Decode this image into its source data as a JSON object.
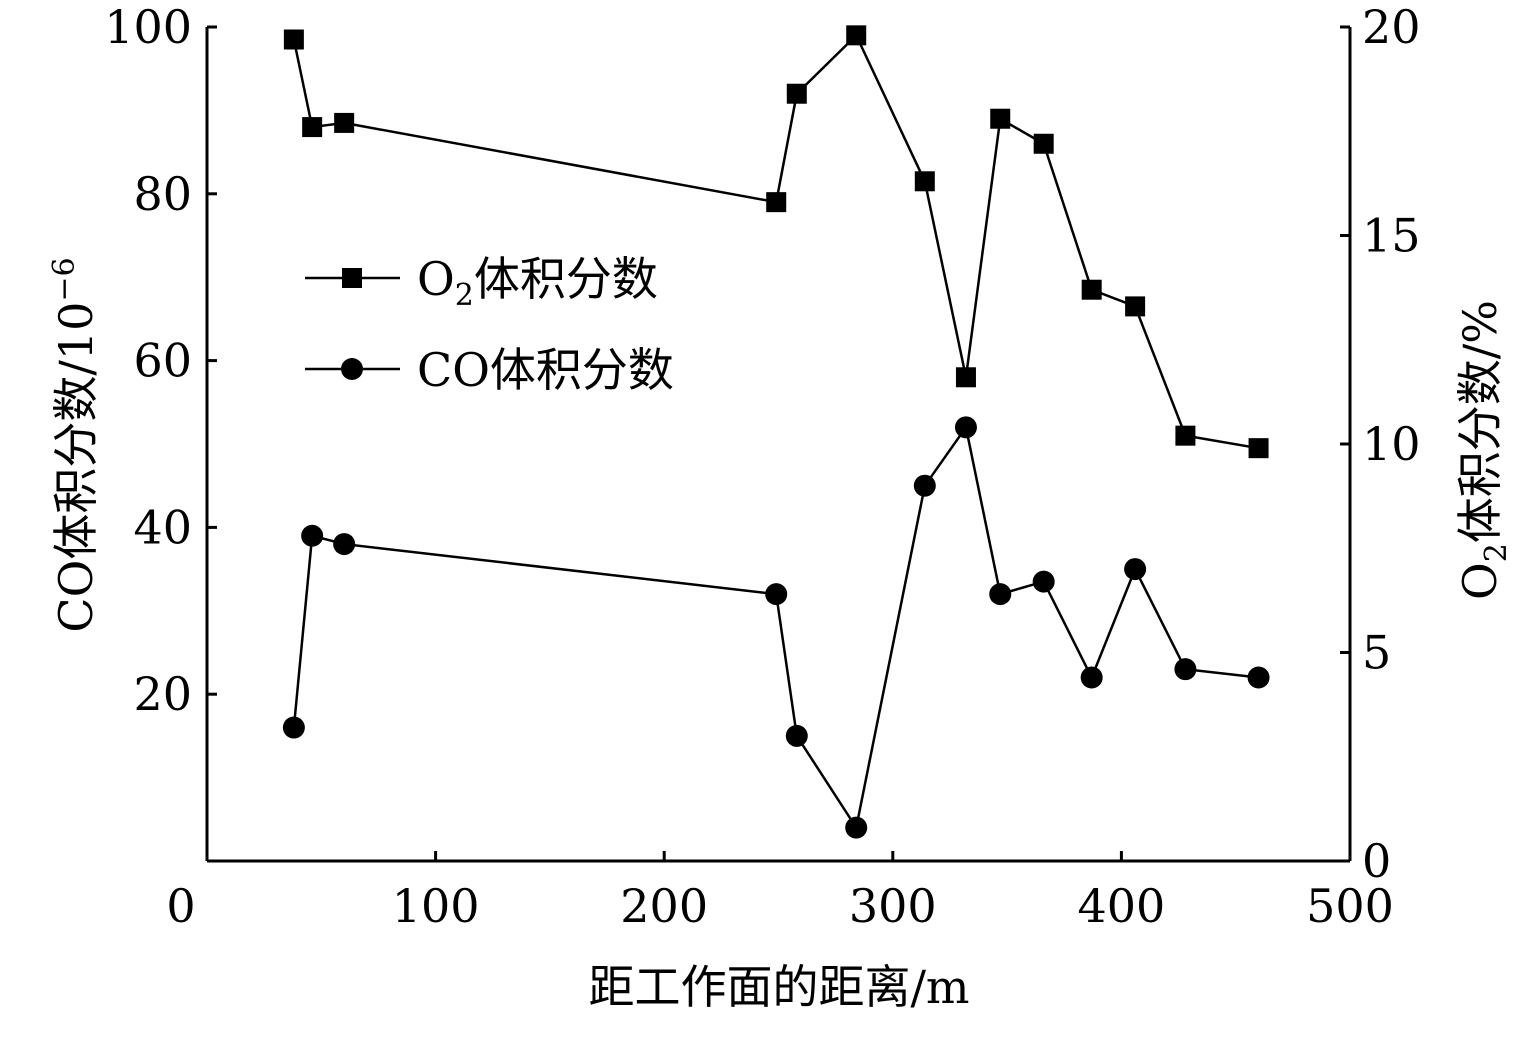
{
  "chart_data": {
    "type": "line",
    "xlabel": "距工作面的距离/m",
    "ylabel_left": {
      "main": "CO体积分数/10",
      "sup": "−6"
    },
    "ylabel_right": {
      "pre": "O",
      "sub": "2",
      "post": "体积分数/%"
    },
    "xlim": [
      0,
      500
    ],
    "ylim_left": [
      0,
      100
    ],
    "ylim_right": [
      0,
      20
    ],
    "x_ticks": [
      0,
      100,
      200,
      300,
      400,
      500
    ],
    "y_left_ticks": [
      20,
      40,
      60,
      80,
      100
    ],
    "y_right_ticks": [
      0,
      5,
      10,
      15,
      20
    ],
    "legend_position": "upper-left",
    "grid": false,
    "series": [
      {
        "key": "o2",
        "legend": {
          "pre": "O",
          "sub": "2",
          "post": "体积分数"
        },
        "axis": "right",
        "marker": "square",
        "x": [
          38,
          46,
          60,
          249,
          258,
          284,
          314,
          332,
          347,
          366,
          387,
          406,
          428,
          460
        ],
        "y": [
          19.7,
          17.6,
          17.7,
          15.8,
          18.4,
          19.8,
          16.3,
          11.6,
          17.8,
          17.2,
          13.7,
          13.3,
          10.2,
          9.9
        ]
      },
      {
        "key": "co",
        "legend": {
          "pre": "CO体积分数",
          "sub": "",
          "post": ""
        },
        "axis": "left",
        "marker": "circle",
        "x": [
          38,
          46,
          60,
          249,
          258,
          284,
          314,
          332,
          347,
          366,
          387,
          406,
          428,
          460
        ],
        "y": [
          16,
          39,
          38,
          32,
          15,
          4,
          45,
          52,
          32,
          33.5,
          22,
          35,
          23,
          22
        ]
      }
    ]
  }
}
